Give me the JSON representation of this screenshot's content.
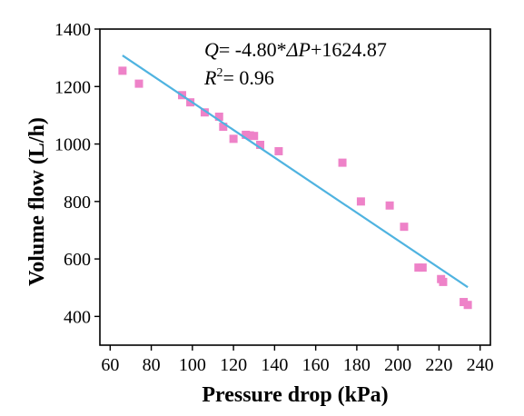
{
  "chart_data": {
    "type": "scatter",
    "title": "",
    "xlabel": "Pressure drop (kPa)",
    "ylabel": "Volume flow (L/h)",
    "xlim": [
      55,
      245
    ],
    "ylim": [
      300,
      1400
    ],
    "xticks": [
      60,
      80,
      100,
      120,
      140,
      160,
      180,
      200,
      220,
      240
    ],
    "yticks": [
      400,
      600,
      800,
      1000,
      1200,
      1400
    ],
    "grid": false,
    "legend": "none",
    "series": [
      {
        "marker": "square",
        "color": "#ee82c8",
        "points": [
          {
            "x": 66,
            "y": 1255
          },
          {
            "x": 74,
            "y": 1210
          },
          {
            "x": 95,
            "y": 1170
          },
          {
            "x": 99,
            "y": 1145
          },
          {
            "x": 106,
            "y": 1110
          },
          {
            "x": 113,
            "y": 1095
          },
          {
            "x": 115,
            "y": 1060
          },
          {
            "x": 120,
            "y": 1018
          },
          {
            "x": 126,
            "y": 1032
          },
          {
            "x": 128,
            "y": 1030
          },
          {
            "x": 130,
            "y": 1028
          },
          {
            "x": 133,
            "y": 997
          },
          {
            "x": 142,
            "y": 975
          },
          {
            "x": 173,
            "y": 935
          },
          {
            "x": 182,
            "y": 800
          },
          {
            "x": 196,
            "y": 786
          },
          {
            "x": 203,
            "y": 712
          },
          {
            "x": 210,
            "y": 570
          },
          {
            "x": 212,
            "y": 570
          },
          {
            "x": 221,
            "y": 530
          },
          {
            "x": 222,
            "y": 520
          },
          {
            "x": 232,
            "y": 450
          },
          {
            "x": 234,
            "y": 440
          }
        ]
      },
      {
        "kind": "fit-line",
        "color": "#4fb3e0",
        "slope": -4.8,
        "intercept": 1624.87,
        "x_range": [
          66,
          234
        ]
      }
    ],
    "annotations": {
      "equation": {
        "q": "Q",
        "eq": "= -4.80*",
        "dp": "ΔP",
        "rest": "+1624.87"
      },
      "r2": {
        "r": "R",
        "sup": "2",
        "rest": "= 0.96"
      }
    }
  }
}
